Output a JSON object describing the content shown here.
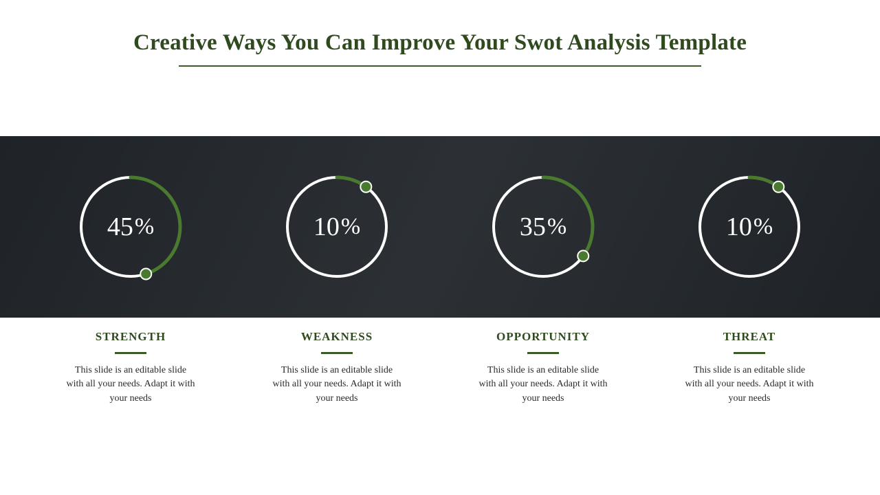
{
  "title": "Creative Ways You Can Improve Your Swot Analysis Template",
  "accent_color": "#3a5a27",
  "title_color": "#2f4a1e",
  "band": {
    "overlay": "rgba(20,24,28,0.72)",
    "ring_track_color": "#ffffff",
    "ring_progress_color": "#4a7a2f",
    "ring_dot_fill": "#4a7a2f",
    "ring_dot_stroke": "#ffffff",
    "pct_color": "#ffffff",
    "rings": [
      {
        "value": 45,
        "display": "45",
        "start_deg": -90
      },
      {
        "value": 10,
        "display": "10",
        "start_deg": -90
      },
      {
        "value": 35,
        "display": "35",
        "start_deg": -90
      },
      {
        "value": 10,
        "display": "10",
        "start_deg": -90
      }
    ]
  },
  "cards": [
    {
      "title": "STRENGTH",
      "desc": "This slide is an editable slide with all your needs. Adapt it with your needs"
    },
    {
      "title": "WEAKNESS",
      "desc": "This slide is an editable slide with all your needs. Adapt it with your needs"
    },
    {
      "title": "OPPORTUNITY",
      "desc": "This slide is an editable slide with all your needs. Adapt it with your needs"
    },
    {
      "title": "THREAT",
      "desc": "This slide is an editable slide with all your needs. Adapt it with your needs"
    }
  ]
}
